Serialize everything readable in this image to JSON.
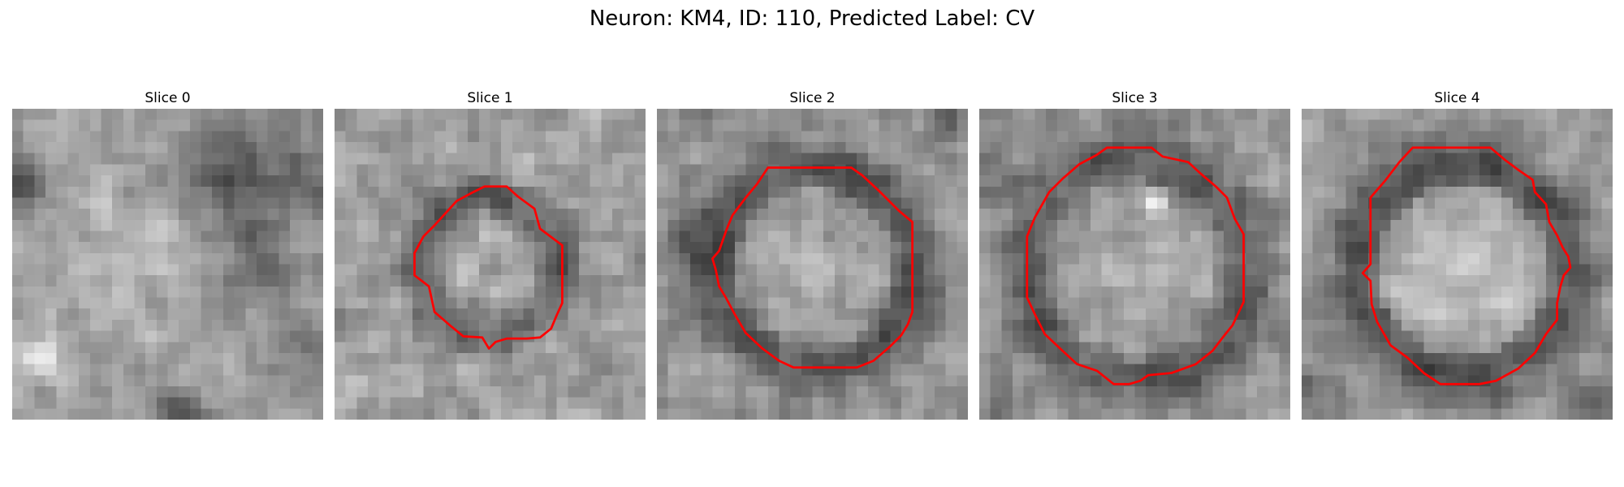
{
  "figure": {
    "title": "Neuron: KM4, ID: 110, Predicted Label: CV"
  },
  "panels": [
    {
      "title": "Slice 0",
      "image": {
        "grid_size": 28,
        "seed": 11,
        "base": 158,
        "noise": 42,
        "blobs": [
          {
            "x": 19.5,
            "y": 6.5,
            "r": 3.8,
            "amp": -70
          },
          {
            "x": 27.5,
            "y": 6.0,
            "r": 2.5,
            "amp": -45
          },
          {
            "x": 0.5,
            "y": 7.0,
            "r": 2.0,
            "amp": -75
          },
          {
            "x": 2.5,
            "y": 22.5,
            "r": 1.3,
            "amp": 85
          },
          {
            "x": 15.0,
            "y": 27.5,
            "r": 1.6,
            "amp": -80
          },
          {
            "x": 26.5,
            "y": 21.0,
            "r": 2.2,
            "amp": -55
          },
          {
            "x": 12.0,
            "y": 12.0,
            "r": 4.5,
            "amp": 28
          },
          {
            "x": 7.0,
            "y": 2.0,
            "r": 3.0,
            "amp": 15
          },
          {
            "x": 22.0,
            "y": 14.5,
            "r": 3.0,
            "amp": -28
          }
        ]
      },
      "contour": []
    },
    {
      "title": "Slice 1",
      "image": {
        "grid_size": 28,
        "seed": 23,
        "base": 160,
        "noise": 50,
        "ring": {
          "cx": 14.0,
          "cy": 14.3,
          "r": 6.3,
          "w": 1.4,
          "amp": -60
        },
        "inner_amp": 8,
        "blobs": []
      },
      "contour": [
        [
          13.5,
          7.0
        ],
        [
          15.5,
          7.0
        ],
        [
          16.5,
          7.9
        ],
        [
          18.0,
          9.0
        ],
        [
          18.5,
          10.8
        ],
        [
          20.5,
          12.3
        ],
        [
          20.5,
          17.5
        ],
        [
          20.0,
          18.6
        ],
        [
          19.5,
          19.8
        ],
        [
          18.5,
          20.6
        ],
        [
          17.3,
          20.7
        ],
        [
          15.5,
          20.7
        ],
        [
          14.5,
          21.0
        ],
        [
          13.9,
          21.6
        ],
        [
          13.3,
          20.6
        ],
        [
          11.6,
          20.5
        ],
        [
          10.5,
          19.6
        ],
        [
          9.0,
          18.3
        ],
        [
          8.5,
          16.0
        ],
        [
          7.2,
          15.0
        ],
        [
          7.2,
          13.0
        ],
        [
          8.0,
          11.5
        ],
        [
          9.0,
          10.5
        ],
        [
          11.0,
          8.3
        ],
        [
          12.5,
          7.5
        ]
      ]
    },
    {
      "title": "Slice 2",
      "image": {
        "grid_size": 28,
        "seed": 37,
        "base": 150,
        "noise": 44,
        "ring": {
          "cx": 14.2,
          "cy": 14.3,
          "r": 8.9,
          "w": 1.8,
          "amp": -62
        },
        "inner_amp": 18,
        "blobs": [
          {
            "x": 3.0,
            "y": 13.0,
            "r": 2.3,
            "amp": -35
          },
          {
            "x": 26.5,
            "y": 0.5,
            "r": 1.6,
            "amp": -55
          }
        ]
      },
      "contour": [
        [
          10.0,
          5.3
        ],
        [
          17.5,
          5.3
        ],
        [
          18.5,
          6.0
        ],
        [
          20.0,
          7.4
        ],
        [
          21.8,
          9.2
        ],
        [
          23.0,
          10.2
        ],
        [
          23.0,
          18.3
        ],
        [
          22.6,
          19.4
        ],
        [
          22.0,
          20.4
        ],
        [
          21.0,
          21.4
        ],
        [
          19.5,
          22.7
        ],
        [
          18.0,
          23.3
        ],
        [
          12.3,
          23.3
        ],
        [
          11.0,
          22.7
        ],
        [
          9.5,
          21.6
        ],
        [
          8.0,
          20.2
        ],
        [
          7.0,
          18.5
        ],
        [
          6.2,
          17.0
        ],
        [
          5.6,
          16.0
        ],
        [
          5.3,
          14.5
        ],
        [
          5.0,
          13.5
        ],
        [
          5.6,
          12.8
        ],
        [
          6.3,
          10.8
        ],
        [
          6.8,
          9.6
        ],
        [
          8.0,
          8.0
        ],
        [
          9.0,
          6.8
        ]
      ]
    },
    {
      "title": "Slice 3",
      "image": {
        "grid_size": 28,
        "seed": 53,
        "base": 152,
        "noise": 46,
        "ring": {
          "cx": 14.2,
          "cy": 14.5,
          "r": 9.9,
          "w": 1.8,
          "amp": -60
        },
        "inner_amp": 16,
        "blobs": [
          {
            "x": 15.8,
            "y": 8.6,
            "r": 0.7,
            "amp": 80
          },
          {
            "x": 1.0,
            "y": 5.5,
            "r": 2.0,
            "amp": -40
          },
          {
            "x": 1.5,
            "y": 27.0,
            "r": 1.8,
            "amp": -40
          }
        ]
      },
      "contour": [
        [
          11.5,
          3.5
        ],
        [
          15.5,
          3.5
        ],
        [
          16.5,
          4.3
        ],
        [
          18.8,
          4.8
        ],
        [
          20.0,
          5.9
        ],
        [
          21.3,
          7.0
        ],
        [
          22.3,
          8.0
        ],
        [
          23.0,
          9.9
        ],
        [
          23.8,
          11.3
        ],
        [
          23.8,
          17.4
        ],
        [
          22.8,
          19.5
        ],
        [
          22.0,
          20.5
        ],
        [
          21.0,
          21.8
        ],
        [
          19.5,
          23.0
        ],
        [
          17.3,
          23.8
        ],
        [
          15.2,
          24.0
        ],
        [
          14.5,
          24.5
        ],
        [
          13.5,
          24.8
        ],
        [
          12.1,
          24.8
        ],
        [
          10.6,
          23.6
        ],
        [
          8.8,
          23.0
        ],
        [
          7.5,
          21.8
        ],
        [
          5.9,
          20.3
        ],
        [
          5.0,
          18.5
        ],
        [
          4.3,
          17.0
        ],
        [
          4.3,
          11.5
        ],
        [
          5.0,
          9.8
        ],
        [
          6.3,
          7.5
        ],
        [
          7.5,
          6.3
        ],
        [
          9.0,
          5.0
        ],
        [
          10.5,
          4.2
        ]
      ]
    },
    {
      "title": "Slice 4",
      "image": {
        "grid_size": 28,
        "seed": 71,
        "base": 155,
        "noise": 40,
        "ring": {
          "cx": 14.5,
          "cy": 14.5,
          "r": 9.6,
          "w": 1.9,
          "amp": -72
        },
        "inner_amp": 32,
        "blobs": [
          {
            "x": 1.0,
            "y": 25.5,
            "r": 2.0,
            "amp": -40
          },
          {
            "x": 26.0,
            "y": 26.5,
            "r": 2.0,
            "amp": -40
          }
        ]
      },
      "contour": [
        [
          10.0,
          3.5
        ],
        [
          17.0,
          3.5
        ],
        [
          18.3,
          4.6
        ],
        [
          19.5,
          5.5
        ],
        [
          20.8,
          6.4
        ],
        [
          21.0,
          7.5
        ],
        [
          22.0,
          8.6
        ],
        [
          22.3,
          10.2
        ],
        [
          23.0,
          11.4
        ],
        [
          23.5,
          12.5
        ],
        [
          24.0,
          13.3
        ],
        [
          24.2,
          14.3
        ],
        [
          23.6,
          15.0
        ],
        [
          23.3,
          16.0
        ],
        [
          23.0,
          17.5
        ],
        [
          23.0,
          19.0
        ],
        [
          22.0,
          20.3
        ],
        [
          21.0,
          22.0
        ],
        [
          19.5,
          23.4
        ],
        [
          17.5,
          24.5
        ],
        [
          16.0,
          24.8
        ],
        [
          12.5,
          24.8
        ],
        [
          11.0,
          23.8
        ],
        [
          9.5,
          22.4
        ],
        [
          8.0,
          21.3
        ],
        [
          6.8,
          19.2
        ],
        [
          6.3,
          17.6
        ],
        [
          6.2,
          15.5
        ],
        [
          5.5,
          14.8
        ],
        [
          6.2,
          14.0
        ],
        [
          6.2,
          8.0
        ],
        [
          7.5,
          6.5
        ],
        [
          8.8,
          4.8
        ]
      ]
    }
  ],
  "colors": {
    "contour": "#ff0000"
  }
}
